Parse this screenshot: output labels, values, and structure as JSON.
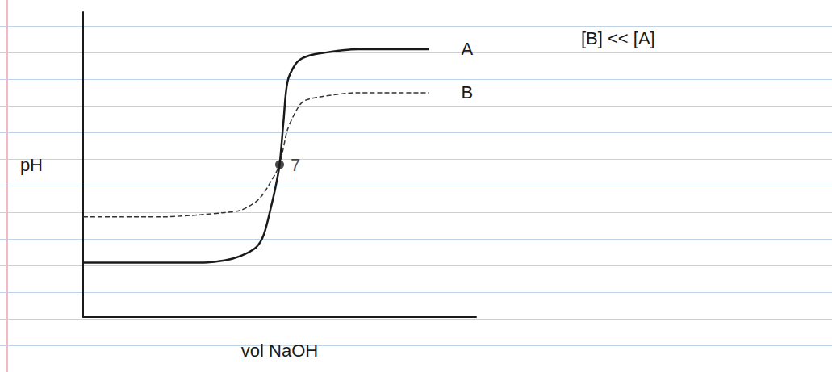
{
  "chart_data": {
    "type": "line",
    "xlabel": "vol NaOH",
    "ylabel": "pH",
    "xlim": [
      0,
      50
    ],
    "ylim": [
      0,
      14
    ],
    "xticks": [],
    "yticks": [],
    "tick_labels": false,
    "grid": false,
    "x": [
      0,
      5,
      10,
      15,
      18,
      20,
      22,
      23,
      24,
      24.5,
      25,
      25.5,
      26,
      27,
      28,
      30,
      35,
      40,
      44
    ],
    "series": [
      {
        "name": "A",
        "color": "#1a1a1a",
        "line_style": "solid",
        "values": [
          2.5,
          2.5,
          2.5,
          2.5,
          2.6,
          2.8,
          3.2,
          3.8,
          5.2,
          6,
          7,
          9,
          10.8,
          11.6,
          11.9,
          12.1,
          12.3,
          12.3,
          12.3
        ]
      },
      {
        "name": "B",
        "color": "#333333",
        "line_style": "dashed",
        "values": [
          4.6,
          4.6,
          4.6,
          4.7,
          4.8,
          4.9,
          5.3,
          5.7,
          6.3,
          6.6,
          7,
          7.8,
          8.6,
          9.4,
          9.9,
          10.1,
          10.3,
          10.3,
          10.3
        ]
      }
    ],
    "annotations": [
      {
        "text": "7",
        "x": 25,
        "y": 7
      },
      {
        "text": "[B] << [A]"
      }
    ]
  }
}
